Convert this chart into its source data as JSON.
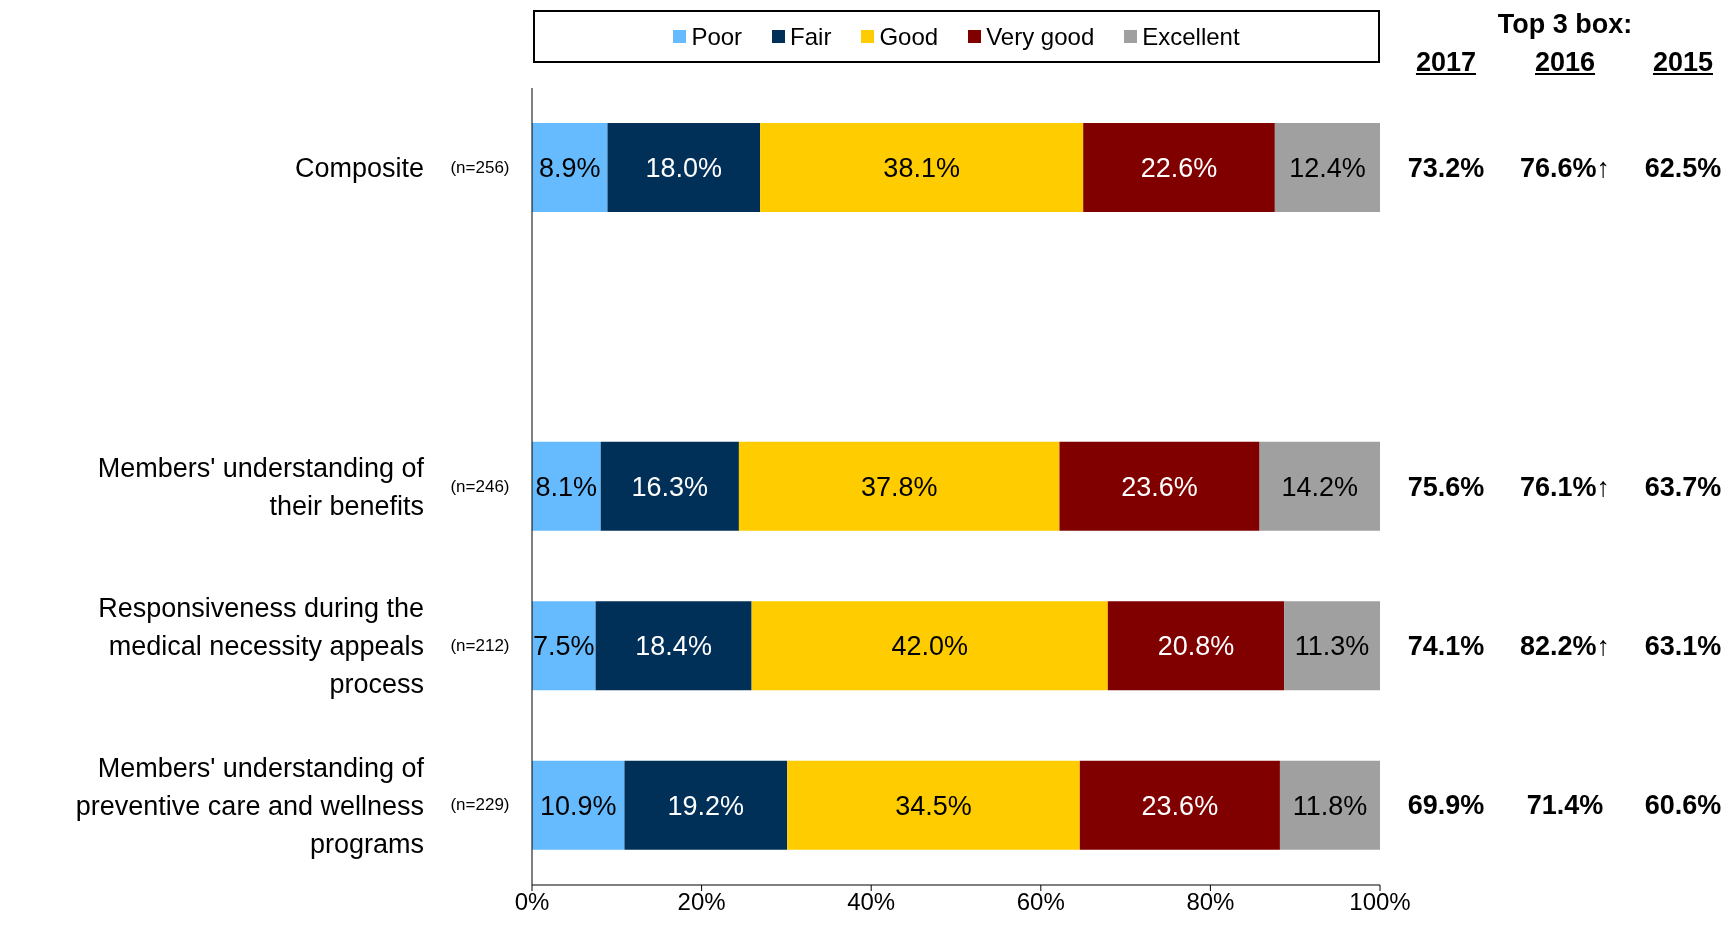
{
  "chart_data": [
    {
      "type": "bar",
      "orientation": "horizontal",
      "stacked": true,
      "legend": "top",
      "categories": [
        "Composite",
        null,
        "Members' understanding of their benefits",
        "Responsiveness during the medical necessity appeals process",
        "Members' understanding of preventive care and wellness programs"
      ],
      "series": [
        {
          "name": "Poor",
          "color": "#66bbff",
          "values": [
            8.9,
            null,
            8.1,
            7.5,
            10.9
          ],
          "value_labels": [
            "8.9%",
            null,
            "8.1%",
            "7.5%",
            "10.9%"
          ]
        },
        {
          "name": "Fair",
          "color": "#003057",
          "values": [
            18.0,
            null,
            16.3,
            18.4,
            19.2
          ],
          "value_labels": [
            "18.0%",
            null,
            "16.3%",
            "18.4%",
            "19.2%"
          ]
        },
        {
          "name": "Good",
          "color": "#ffcc00",
          "values": [
            38.1,
            null,
            37.8,
            42.0,
            34.5
          ],
          "value_labels": [
            "38.1%",
            null,
            "37.8%",
            "42.0%",
            "34.5%"
          ]
        },
        {
          "name": "Very good",
          "color": "#800000",
          "values": [
            22.6,
            null,
            23.6,
            20.8,
            23.6
          ],
          "value_labels": [
            "22.6%",
            null,
            "23.6%",
            "20.8%",
            "23.6%"
          ]
        },
        {
          "name": "Excellent",
          "color": "#a0a0a0",
          "values": [
            12.4,
            null,
            14.2,
            11.3,
            11.8
          ],
          "value_labels": [
            "12.4%",
            null,
            "14.2%",
            "11.3%",
            "11.8%"
          ]
        }
      ],
      "xlim": [
        0,
        100
      ],
      "xticks": [
        {
          "value": 0,
          "label": "0%"
        },
        {
          "value": 20,
          "label": "20%"
        },
        {
          "value": 40,
          "label": "40%"
        },
        {
          "value": 60,
          "label": "60%"
        },
        {
          "value": 80,
          "label": "80%"
        },
        {
          "value": 100,
          "label": "100%"
        }
      ],
      "annotations": [
        "(n=256)",
        "(n=246)",
        "(n=212)",
        "(n=229)"
      ]
    },
    {
      "type": "other",
      "title": "Top 3 box:",
      "categories": [
        "2017",
        "2016",
        "2015"
      ],
      "cell_labels": [
        [
          "73.2%",
          "76.6%↑",
          "62.5%"
        ],
        [
          null,
          null,
          null
        ],
        [
          "75.6%",
          "76.1%↑",
          "63.7%"
        ],
        [
          "74.1%",
          "82.2%↑",
          "63.1%"
        ],
        [
          "69.9%",
          "71.4%",
          "60.6%"
        ]
      ]
    }
  ]
}
